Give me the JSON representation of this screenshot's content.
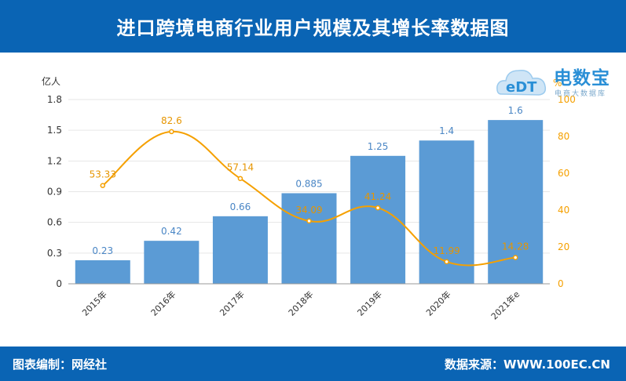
{
  "title": "进口跨境电商行业用户规模及其增长率数据图",
  "footer": {
    "left": "图表编制：网经社",
    "right": "数据来源：WWW.100EC.CN"
  },
  "logo": {
    "name": "电数宝",
    "badge": "eDT",
    "tagline": "电商大数据库"
  },
  "colors": {
    "bar": "#5b9bd5",
    "line": "#f5a000",
    "header": "#0a64b4"
  },
  "chart_data": {
    "type": "bar",
    "categories": [
      "2015年",
      "2016年",
      "2017年",
      "2018年",
      "2019年",
      "2020年",
      "2021年e"
    ],
    "series": [
      {
        "name": "",
        "type": "bar",
        "axis": "left",
        "values": [
          0.23,
          0.42,
          0.66,
          0.885,
          1.25,
          1.4,
          1.6
        ],
        "labels": [
          "0.23",
          "0.42",
          "0.66",
          "0.885",
          "1.25",
          "1.4",
          "1.6"
        ]
      },
      {
        "name": "",
        "type": "line",
        "axis": "right",
        "values": [
          53.33,
          82.6,
          57.14,
          34.09,
          41.24,
          11.99,
          14.28
        ],
        "labels": [
          "53.33",
          "82.6",
          "57.14",
          "34.09",
          "41.24",
          "11.99",
          "14.28"
        ]
      }
    ],
    "ylabel": "亿人",
    "ylabel_right": "%",
    "ylim": [
      0,
      1.8
    ],
    "yticks": [
      "0",
      "0.3",
      "0.6",
      "0.9",
      "1.2",
      "1.5",
      "1.8"
    ],
    "ylim_right": [
      0,
      100
    ],
    "yticks_right": [
      "0",
      "20",
      "40",
      "60",
      "80",
      "100"
    ],
    "grid": true
  }
}
